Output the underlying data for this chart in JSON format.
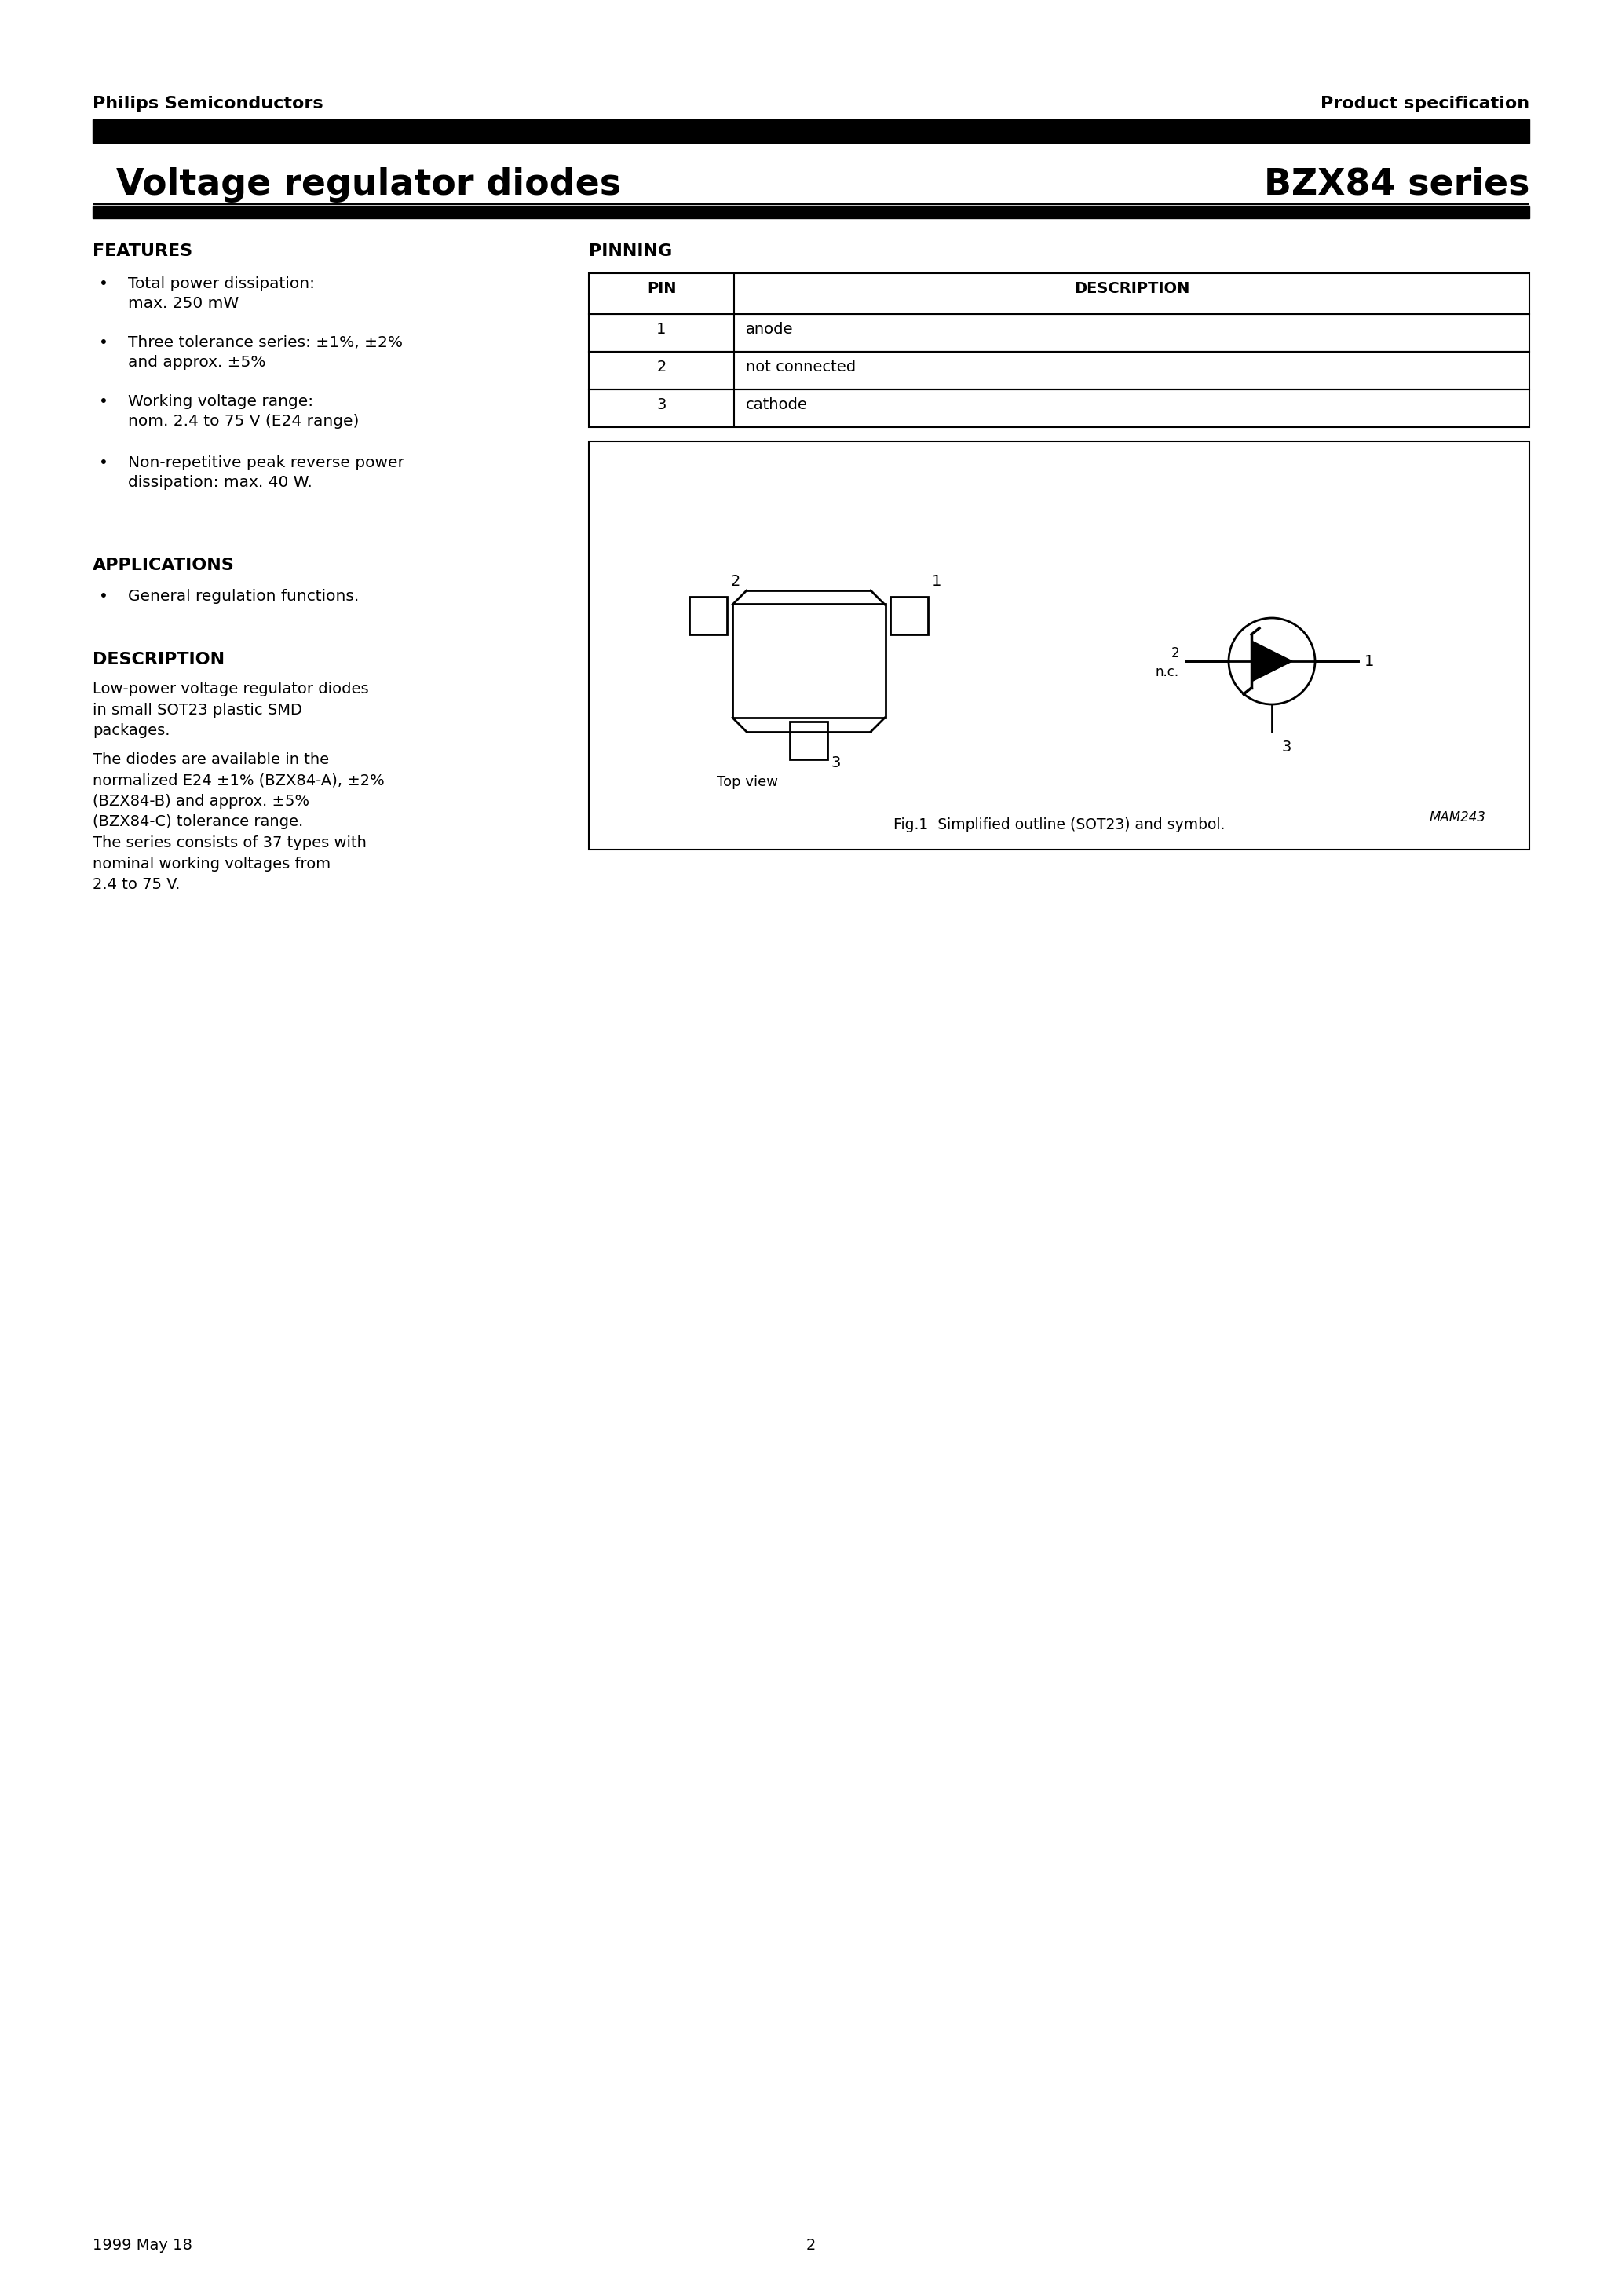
{
  "page_bg": "#ffffff",
  "header_left": "Philips Semiconductors",
  "header_right": "Product specification",
  "title_left": "Voltage regulator diodes",
  "title_right": "BZX84 series",
  "features_title": "FEATURES",
  "features": [
    "Total power dissipation:\nmax. 250 mW",
    "Three tolerance series: ±1%, ±2%\nand approx. ±5%",
    "Working voltage range:\nnom. 2.4 to 75 V (E24 range)",
    "Non-repetitive peak reverse power\ndissipation: max. 40 W."
  ],
  "applications_title": "APPLICATIONS",
  "applications": [
    "General regulation functions."
  ],
  "description_title": "DESCRIPTION",
  "description_para1": "Low-power voltage regulator diodes\nin small SOT23 plastic SMD\npackages.",
  "description_para2": "The diodes are available in the\nnormalized E24 ±1% (BZX84-A), ±2%\n(BZX84-B) and approx. ±5%\n(BZX84-C) tolerance range.\nThe series consists of 37 types with\nnominal working voltages from\n2.4 to 75 V.",
  "pinning_title": "PINNING",
  "pin_headers": [
    "PIN",
    "DESCRIPTION"
  ],
  "pin_rows": [
    [
      "1",
      "anode"
    ],
    [
      "2",
      "not connected"
    ],
    [
      "3",
      "cathode"
    ]
  ],
  "fig_caption": "Fig.1  Simplified outline (SOT23) and symbol.",
  "mam_label": "MAM243",
  "topview_label": "Top view",
  "footer_left": "1999 May 18",
  "footer_center": "2",
  "bullet": "•"
}
